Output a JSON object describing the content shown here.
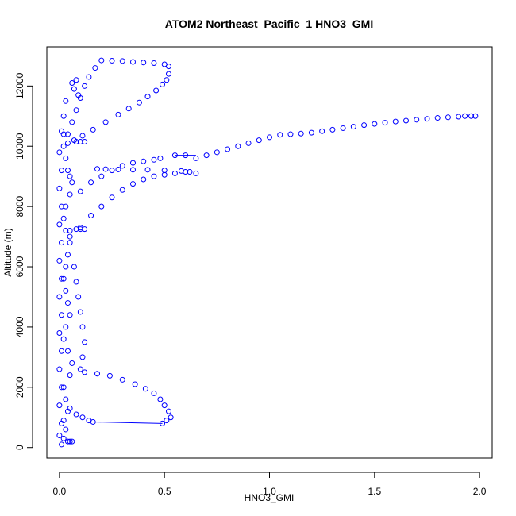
{
  "chart_data": {
    "type": "scatter",
    "title": "ATOM2 Northeast_Pacific_1 HNO3_GMI",
    "xlabel": "HNO3_GMI",
    "ylabel": "Altitude (m)",
    "xlim": [
      -0.06,
      2.06
    ],
    "ylim": [
      -350,
      13300
    ],
    "x_ticks": [
      0.0,
      0.5,
      1.0,
      1.5,
      2.0
    ],
    "x_tick_labels": [
      "0.0",
      "0.5",
      "1.0",
      "1.5",
      "2.0"
    ],
    "y_ticks": [
      0,
      2000,
      4000,
      6000,
      8000,
      10000,
      12000
    ],
    "y_tick_labels": [
      "0",
      "2000",
      "4000",
      "6000",
      "8000",
      "10000",
      "12000"
    ],
    "marker": "open-circle",
    "color": "#0000ff",
    "line_segments": [
      {
        "x": [
          0.16,
          0.49
        ],
        "y": [
          850,
          800
        ]
      },
      {
        "x": [
          0.55,
          0.65
        ],
        "y": [
          9700,
          9700
        ]
      }
    ],
    "series": [
      {
        "points": [
          [
            0.01,
            100
          ],
          [
            0.02,
            300
          ],
          [
            0.03,
            600
          ],
          [
            0.02,
            900
          ],
          [
            0.04,
            1200
          ],
          [
            0.03,
            1600
          ],
          [
            0.02,
            2000
          ],
          [
            0.05,
            2400
          ],
          [
            0.06,
            2800
          ],
          [
            0.04,
            3200
          ],
          [
            0.02,
            3600
          ],
          [
            0.03,
            4000
          ],
          [
            0.05,
            4400
          ],
          [
            0.04,
            4800
          ],
          [
            0.03,
            5200
          ],
          [
            0.02,
            5600
          ],
          [
            0.03,
            6000
          ],
          [
            0.04,
            6400
          ],
          [
            0.05,
            6800
          ],
          [
            0.03,
            7200
          ],
          [
            0.02,
            7600
          ],
          [
            0.03,
            8000
          ],
          [
            0.05,
            8400
          ],
          [
            0.06,
            8800
          ],
          [
            0.04,
            9200
          ],
          [
            0.03,
            9600
          ],
          [
            0.02,
            10000
          ],
          [
            0.04,
            10400
          ],
          [
            0.06,
            10800
          ],
          [
            0.08,
            11200
          ],
          [
            0.1,
            11600
          ],
          [
            0.12,
            12000
          ],
          [
            0.14,
            12300
          ],
          [
            0.17,
            12600
          ],
          [
            0.2,
            12850
          ],
          [
            0.25,
            12840
          ],
          [
            0.3,
            12830
          ],
          [
            0.35,
            12800
          ],
          [
            0.4,
            12780
          ],
          [
            0.45,
            12760
          ],
          [
            0.5,
            12720
          ],
          [
            0.52,
            12650
          ],
          [
            0.52,
            12400
          ],
          [
            0.51,
            12200
          ],
          [
            0.49,
            12050
          ],
          [
            0.46,
            11850
          ],
          [
            0.42,
            11650
          ],
          [
            0.38,
            11450
          ],
          [
            0.33,
            11250
          ],
          [
            0.28,
            11050
          ],
          [
            0.22,
            10800
          ],
          [
            0.16,
            10550
          ],
          [
            0.11,
            10350
          ],
          [
            0.07,
            10200
          ],
          [
            0.04,
            10100
          ],
          [
            0.08,
            10150
          ],
          [
            0.1,
            10150
          ],
          [
            0.12,
            10150
          ],
          [
            0.02,
            10400
          ],
          [
            0.05,
            9000
          ],
          [
            0.1,
            8500
          ],
          [
            0.15,
            8800
          ],
          [
            0.2,
            9000
          ],
          [
            0.25,
            9200
          ],
          [
            0.3,
            9350
          ],
          [
            0.35,
            9450
          ],
          [
            0.4,
            9500
          ],
          [
            0.45,
            9550
          ],
          [
            0.48,
            9600
          ],
          [
            0.55,
            9700
          ],
          [
            0.6,
            9700
          ],
          [
            0.65,
            9600
          ],
          [
            0.7,
            9700
          ],
          [
            0.75,
            9800
          ],
          [
            0.8,
            9900
          ],
          [
            0.85,
            10000
          ],
          [
            0.9,
            10100
          ],
          [
            0.95,
            10200
          ],
          [
            1.0,
            10300
          ],
          [
            1.05,
            10380
          ],
          [
            1.1,
            10400
          ],
          [
            1.15,
            10420
          ],
          [
            1.2,
            10450
          ],
          [
            1.25,
            10500
          ],
          [
            1.3,
            10550
          ],
          [
            1.35,
            10600
          ],
          [
            1.4,
            10650
          ],
          [
            1.45,
            10700
          ],
          [
            1.5,
            10740
          ],
          [
            1.55,
            10780
          ],
          [
            1.6,
            10820
          ],
          [
            1.65,
            10850
          ],
          [
            1.7,
            10880
          ],
          [
            1.75,
            10910
          ],
          [
            1.8,
            10940
          ],
          [
            1.85,
            10960
          ],
          [
            1.9,
            10980
          ],
          [
            1.93,
            11000
          ],
          [
            1.96,
            11000
          ],
          [
            1.98,
            11000
          ],
          [
            0.05,
            7000
          ],
          [
            0.1,
            7300
          ],
          [
            0.15,
            7700
          ],
          [
            0.2,
            8000
          ],
          [
            0.25,
            8300
          ],
          [
            0.3,
            8550
          ],
          [
            0.35,
            8750
          ],
          [
            0.4,
            8900
          ],
          [
            0.45,
            9000
          ],
          [
            0.5,
            9050
          ],
          [
            0.55,
            9100
          ],
          [
            0.6,
            9150
          ],
          [
            0.65,
            9100
          ],
          [
            0.62,
            9150
          ],
          [
            0.58,
            9180
          ],
          [
            0.5,
            9200
          ],
          [
            0.42,
            9220
          ],
          [
            0.35,
            9220
          ],
          [
            0.28,
            9230
          ],
          [
            0.22,
            9240
          ],
          [
            0.18,
            9250
          ],
          [
            0.05,
            7200
          ],
          [
            0.08,
            7250
          ],
          [
            0.1,
            7250
          ],
          [
            0.12,
            7250
          ],
          [
            0.07,
            6000
          ],
          [
            0.08,
            5500
          ],
          [
            0.09,
            5000
          ],
          [
            0.1,
            4500
          ],
          [
            0.11,
            4000
          ],
          [
            0.12,
            3500
          ],
          [
            0.11,
            3000
          ],
          [
            0.1,
            2600
          ],
          [
            0.12,
            2500
          ],
          [
            0.18,
            2450
          ],
          [
            0.24,
            2380
          ],
          [
            0.3,
            2250
          ],
          [
            0.36,
            2100
          ],
          [
            0.41,
            1950
          ],
          [
            0.45,
            1800
          ],
          [
            0.48,
            1600
          ],
          [
            0.5,
            1400
          ],
          [
            0.52,
            1200
          ],
          [
            0.53,
            1000
          ],
          [
            0.51,
            900
          ],
          [
            0.49,
            800
          ],
          [
            0.05,
            1300
          ],
          [
            0.08,
            1100
          ],
          [
            0.11,
            1000
          ],
          [
            0.14,
            900
          ],
          [
            0.16,
            850
          ],
          [
            0.06,
            200
          ],
          [
            0.05,
            200
          ],
          [
            0.04,
            200
          ],
          [
            0.08,
            12200
          ],
          [
            0.06,
            12100
          ],
          [
            0.07,
            11900
          ],
          [
            0.09,
            11700
          ],
          [
            0.03,
            11500
          ],
          [
            0.02,
            11000
          ],
          [
            0.01,
            10500
          ],
          [
            0.0,
            9800
          ],
          [
            0.01,
            9200
          ],
          [
            0.0,
            8600
          ],
          [
            0.01,
            8000
          ],
          [
            0.0,
            7400
          ],
          [
            0.01,
            6800
          ],
          [
            0.0,
            6200
          ],
          [
            0.01,
            5600
          ],
          [
            0.0,
            5000
          ],
          [
            0.01,
            4400
          ],
          [
            0.0,
            3800
          ],
          [
            0.01,
            3200
          ],
          [
            0.0,
            2600
          ],
          [
            0.01,
            2000
          ],
          [
            0.0,
            1400
          ],
          [
            0.01,
            800
          ],
          [
            0.0,
            400
          ]
        ]
      }
    ]
  }
}
